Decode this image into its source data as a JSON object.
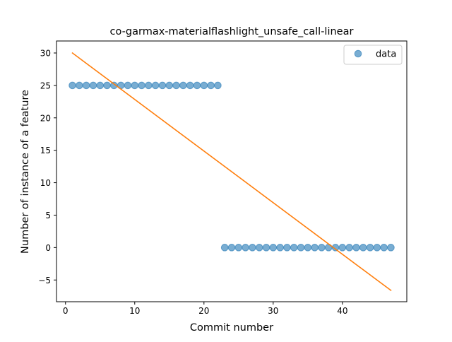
{
  "chart_data": {
    "type": "scatter",
    "title": "co-garmax-materialflashlight_unsafe_call-linear",
    "xlabel": "Commit number",
    "ylabel": "Number of instance of a feature",
    "xlim": [
      -1.3,
      49.3
    ],
    "ylim": [
      -8.35,
      31.85
    ],
    "xticks": [
      0,
      10,
      20,
      30,
      40
    ],
    "yticks": [
      -5,
      0,
      5,
      10,
      15,
      20,
      25,
      30
    ],
    "grid": false,
    "legend": {
      "placement": "top-right",
      "entries": [
        "data"
      ]
    },
    "colors": {
      "data": "#1f77b4",
      "fit": "#ff7f0e"
    },
    "series": [
      {
        "name": "data",
        "kind": "scatter",
        "x": [
          1,
          2,
          3,
          4,
          5,
          6,
          7,
          8,
          9,
          10,
          11,
          12,
          13,
          14,
          15,
          16,
          17,
          18,
          19,
          20,
          21,
          22,
          23,
          24,
          25,
          26,
          27,
          28,
          29,
          30,
          31,
          32,
          33,
          34,
          35,
          36,
          37,
          38,
          39,
          40,
          41,
          42,
          43,
          44,
          45,
          46,
          47
        ],
        "y": [
          25,
          25,
          25,
          25,
          25,
          25,
          25,
          25,
          25,
          25,
          25,
          25,
          25,
          25,
          25,
          25,
          25,
          25,
          25,
          25,
          25,
          25,
          0,
          0,
          0,
          0,
          0,
          0,
          0,
          0,
          0,
          0,
          0,
          0,
          0,
          0,
          0,
          0,
          0,
          0,
          0,
          0,
          0,
          0,
          0,
          0,
          0
        ]
      },
      {
        "kind": "line",
        "x": [
          1,
          47
        ],
        "y": [
          30.0,
          -6.6
        ]
      }
    ]
  }
}
